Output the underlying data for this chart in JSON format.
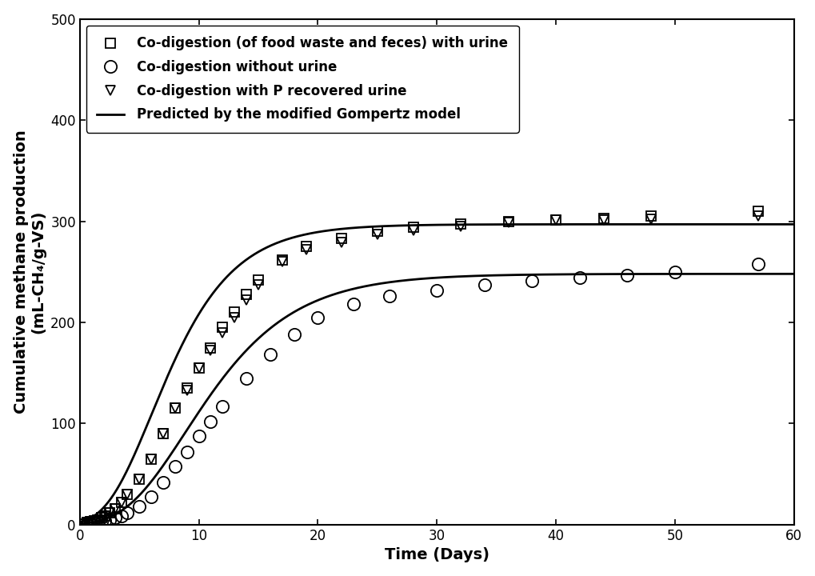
{
  "title": "",
  "xlabel": "Time (Days)",
  "ylabel": "Cumulative methane production\n(mL-CH₄/g-VS)",
  "xlim": [
    0,
    60
  ],
  "ylim": [
    0,
    500
  ],
  "xticks": [
    0,
    10,
    20,
    30,
    40,
    50,
    60
  ],
  "yticks": [
    0,
    100,
    200,
    300,
    400,
    500
  ],
  "series1_label": "Co-digestion (of food waste and feces) with urine",
  "series2_label": "Co-digestion without urine",
  "series3_label": "Co-digestion with P recovered urine",
  "series4_label": "Predicted by the modified Gompertz model",
  "series1_data_x": [
    0.3,
    0.6,
    0.9,
    1.2,
    1.5,
    1.8,
    2.1,
    2.5,
    3.0,
    3.5,
    4.0,
    5.0,
    6.0,
    7.0,
    8.0,
    9.0,
    10.0,
    11.0,
    12.0,
    13.0,
    14.0,
    15.0,
    17.0,
    19.0,
    22.0,
    25.0,
    28.0,
    32.0,
    36.0,
    40.0,
    44.0,
    48.0,
    57.0
  ],
  "series1_data_y": [
    1,
    2,
    3,
    4,
    5,
    7,
    9,
    12,
    16,
    22,
    30,
    45,
    65,
    90,
    115,
    135,
    155,
    175,
    195,
    210,
    228,
    242,
    262,
    275,
    283,
    290,
    294,
    297,
    300,
    301,
    303,
    305,
    310
  ],
  "series2_data_x": [
    0.3,
    0.6,
    0.9,
    1.2,
    1.5,
    1.8,
    2.1,
    2.5,
    3.0,
    3.5,
    4.0,
    5.0,
    6.0,
    7.0,
    8.0,
    9.0,
    10.0,
    11.0,
    12.0,
    14.0,
    16.0,
    18.0,
    20.0,
    23.0,
    26.0,
    30.0,
    34.0,
    38.0,
    42.0,
    46.0,
    50.0,
    57.0
  ],
  "series2_data_y": [
    0,
    1,
    1,
    2,
    2,
    3,
    4,
    5,
    7,
    9,
    12,
    18,
    28,
    42,
    58,
    72,
    88,
    102,
    117,
    145,
    168,
    188,
    205,
    218,
    226,
    232,
    237,
    241,
    244,
    247,
    250,
    258
  ],
  "series3_data_x": [
    0.3,
    0.6,
    0.9,
    1.2,
    1.5,
    1.8,
    2.1,
    2.5,
    3.0,
    3.5,
    4.0,
    5.0,
    6.0,
    7.0,
    8.0,
    9.0,
    10.0,
    11.0,
    12.0,
    13.0,
    14.0,
    15.0,
    17.0,
    19.0,
    22.0,
    25.0,
    28.0,
    32.0,
    36.0,
    40.0,
    44.0,
    48.0,
    57.0
  ],
  "series3_data_y": [
    1,
    2,
    3,
    4,
    5,
    7,
    9,
    12,
    16,
    22,
    30,
    45,
    65,
    90,
    115,
    133,
    155,
    172,
    190,
    205,
    222,
    237,
    260,
    272,
    279,
    287,
    291,
    295,
    299,
    301,
    301,
    302,
    305
  ],
  "gompertz1_P": 297.0,
  "gompertz1_Rm": 28.5,
  "gompertz1_lambda": 2.2,
  "gompertz2_P": 248.0,
  "gompertz2_Rm": 18.0,
  "gompertz2_lambda": 3.8,
  "line_color": "#000000",
  "marker_facecolor": "none",
  "marker_size_sq": 9,
  "marker_size_circ": 11,
  "marker_size_tri": 9,
  "line_width": 2.0,
  "legend_fontsize": 12,
  "axis_fontsize": 14,
  "tick_fontsize": 12,
  "background_color": "#ffffff"
}
